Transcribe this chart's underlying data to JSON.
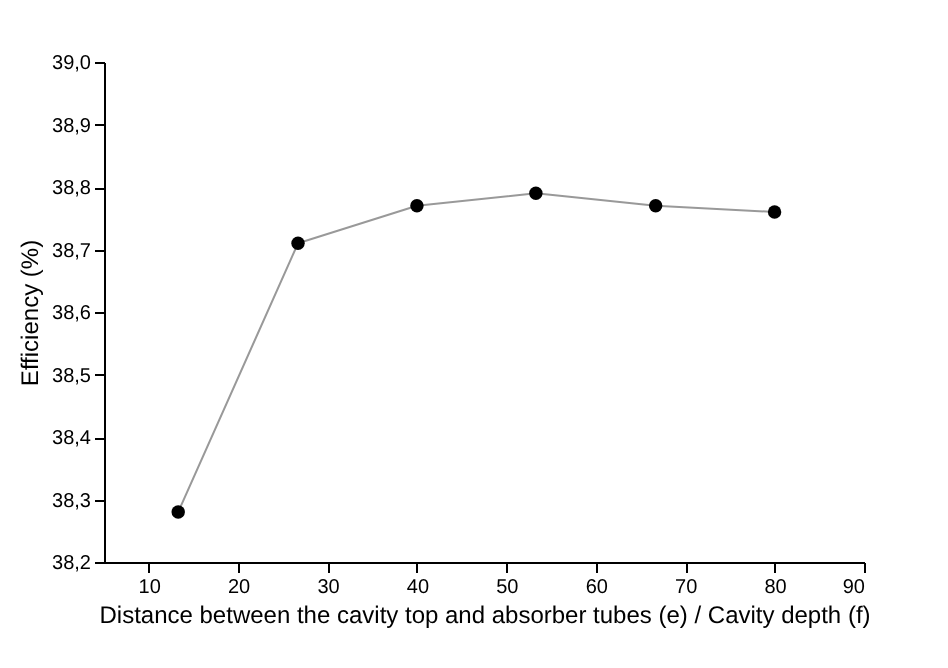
{
  "chart_data": {
    "type": "line",
    "xlabel": "Distance between the cavity top and absorber tubes (e) / Cavity depth (f)",
    "ylabel": "Efficiency (%)",
    "x": [
      13.3,
      26.7,
      40,
      53.3,
      66.7,
      80
    ],
    "series": [
      {
        "color": "#000000",
        "values": [
          38.28,
          38.71,
          38.77,
          38.79,
          38.77,
          38.76
        ]
      }
    ],
    "xlim": [
      5,
      90
    ],
    "xticks": [
      10,
      20,
      30,
      40,
      50,
      60,
      70,
      80,
      90
    ],
    "ylim": [
      38.2,
      39.0
    ],
    "yticks": [
      {
        "value": 38.2,
        "label": "38,2"
      },
      {
        "value": 38.3,
        "label": "38,3"
      },
      {
        "value": 38.4,
        "label": "38,4"
      },
      {
        "value": 38.5,
        "label": "38,5"
      },
      {
        "value": 38.6,
        "label": "38,6"
      },
      {
        "value": 38.7,
        "label": "38,7"
      },
      {
        "value": 38.8,
        "label": "38,8"
      },
      {
        "value": 38.9,
        "label": "38,9"
      },
      {
        "value": 39.0,
        "label": "39,0"
      }
    ],
    "grid": false,
    "legend": false,
    "marker": "circle",
    "line_style": "solid"
  }
}
